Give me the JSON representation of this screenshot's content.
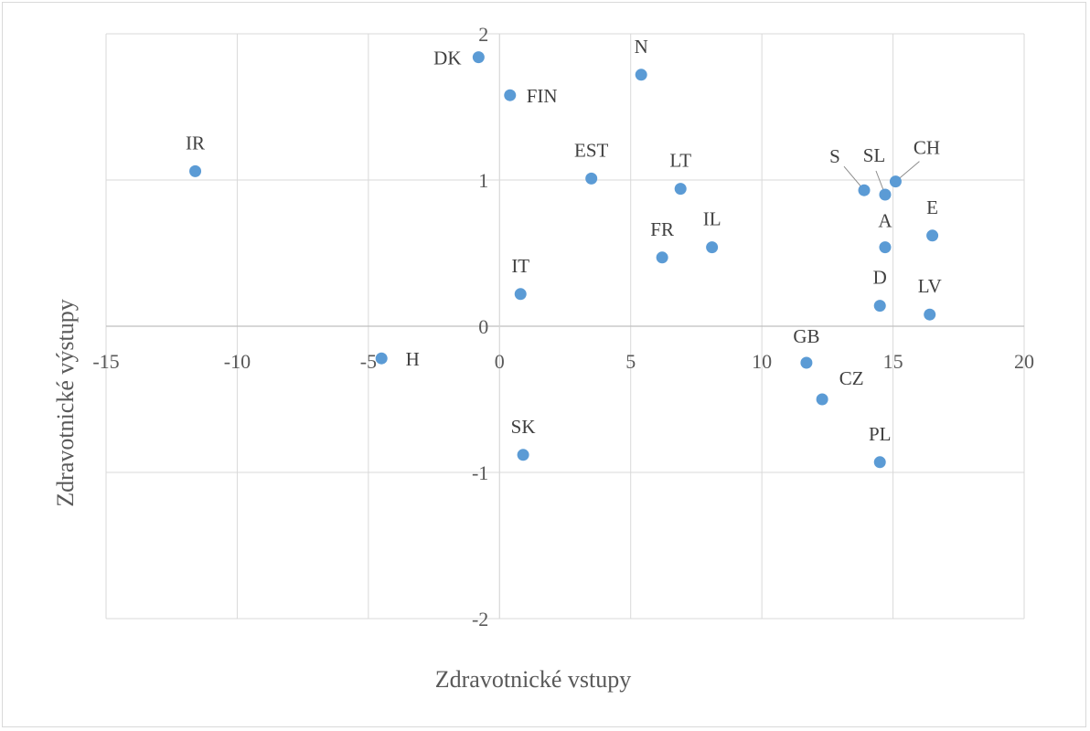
{
  "chart_data": {
    "type": "scatter",
    "title": "",
    "xlabel": "Zdravotnické vstupy",
    "ylabel": "Zdravotnické výstupy",
    "xlim": [
      -15,
      20
    ],
    "ylim": [
      -2,
      2
    ],
    "x_ticks": [
      -15,
      -10,
      -5,
      0,
      5,
      10,
      15,
      20
    ],
    "y_ticks": [
      -2,
      -1,
      0,
      1,
      2
    ],
    "grid": true,
    "legend": "none",
    "marker_color": "#5b9bd5",
    "points": [
      {
        "label": "DK",
        "x": -0.8,
        "y": 1.84
      },
      {
        "label": "N",
        "x": 5.4,
        "y": 1.72
      },
      {
        "label": "FIN",
        "x": 0.4,
        "y": 1.58
      },
      {
        "label": "IR",
        "x": -11.6,
        "y": 1.06
      },
      {
        "label": "EST",
        "x": 3.5,
        "y": 1.01
      },
      {
        "label": "LT",
        "x": 6.9,
        "y": 0.94
      },
      {
        "label": "S",
        "x": 13.9,
        "y": 0.93
      },
      {
        "label": "SL",
        "x": 14.7,
        "y": 0.9
      },
      {
        "label": "CH",
        "x": 15.1,
        "y": 0.99
      },
      {
        "label": "E",
        "x": 16.5,
        "y": 0.62
      },
      {
        "label": "A",
        "x": 14.7,
        "y": 0.54
      },
      {
        "label": "IL",
        "x": 8.1,
        "y": 0.54
      },
      {
        "label": "FR",
        "x": 6.2,
        "y": 0.47
      },
      {
        "label": "IT",
        "x": 0.8,
        "y": 0.22
      },
      {
        "label": "D",
        "x": 14.5,
        "y": 0.14
      },
      {
        "label": "LV",
        "x": 16.4,
        "y": 0.08
      },
      {
        "label": "H",
        "x": -4.5,
        "y": -0.22
      },
      {
        "label": "GB",
        "x": 11.7,
        "y": -0.25
      },
      {
        "label": "CZ",
        "x": 12.3,
        "y": -0.5
      },
      {
        "label": "SK",
        "x": 0.9,
        "y": -0.88
      },
      {
        "label": "PL",
        "x": 14.5,
        "y": -0.93
      }
    ]
  }
}
